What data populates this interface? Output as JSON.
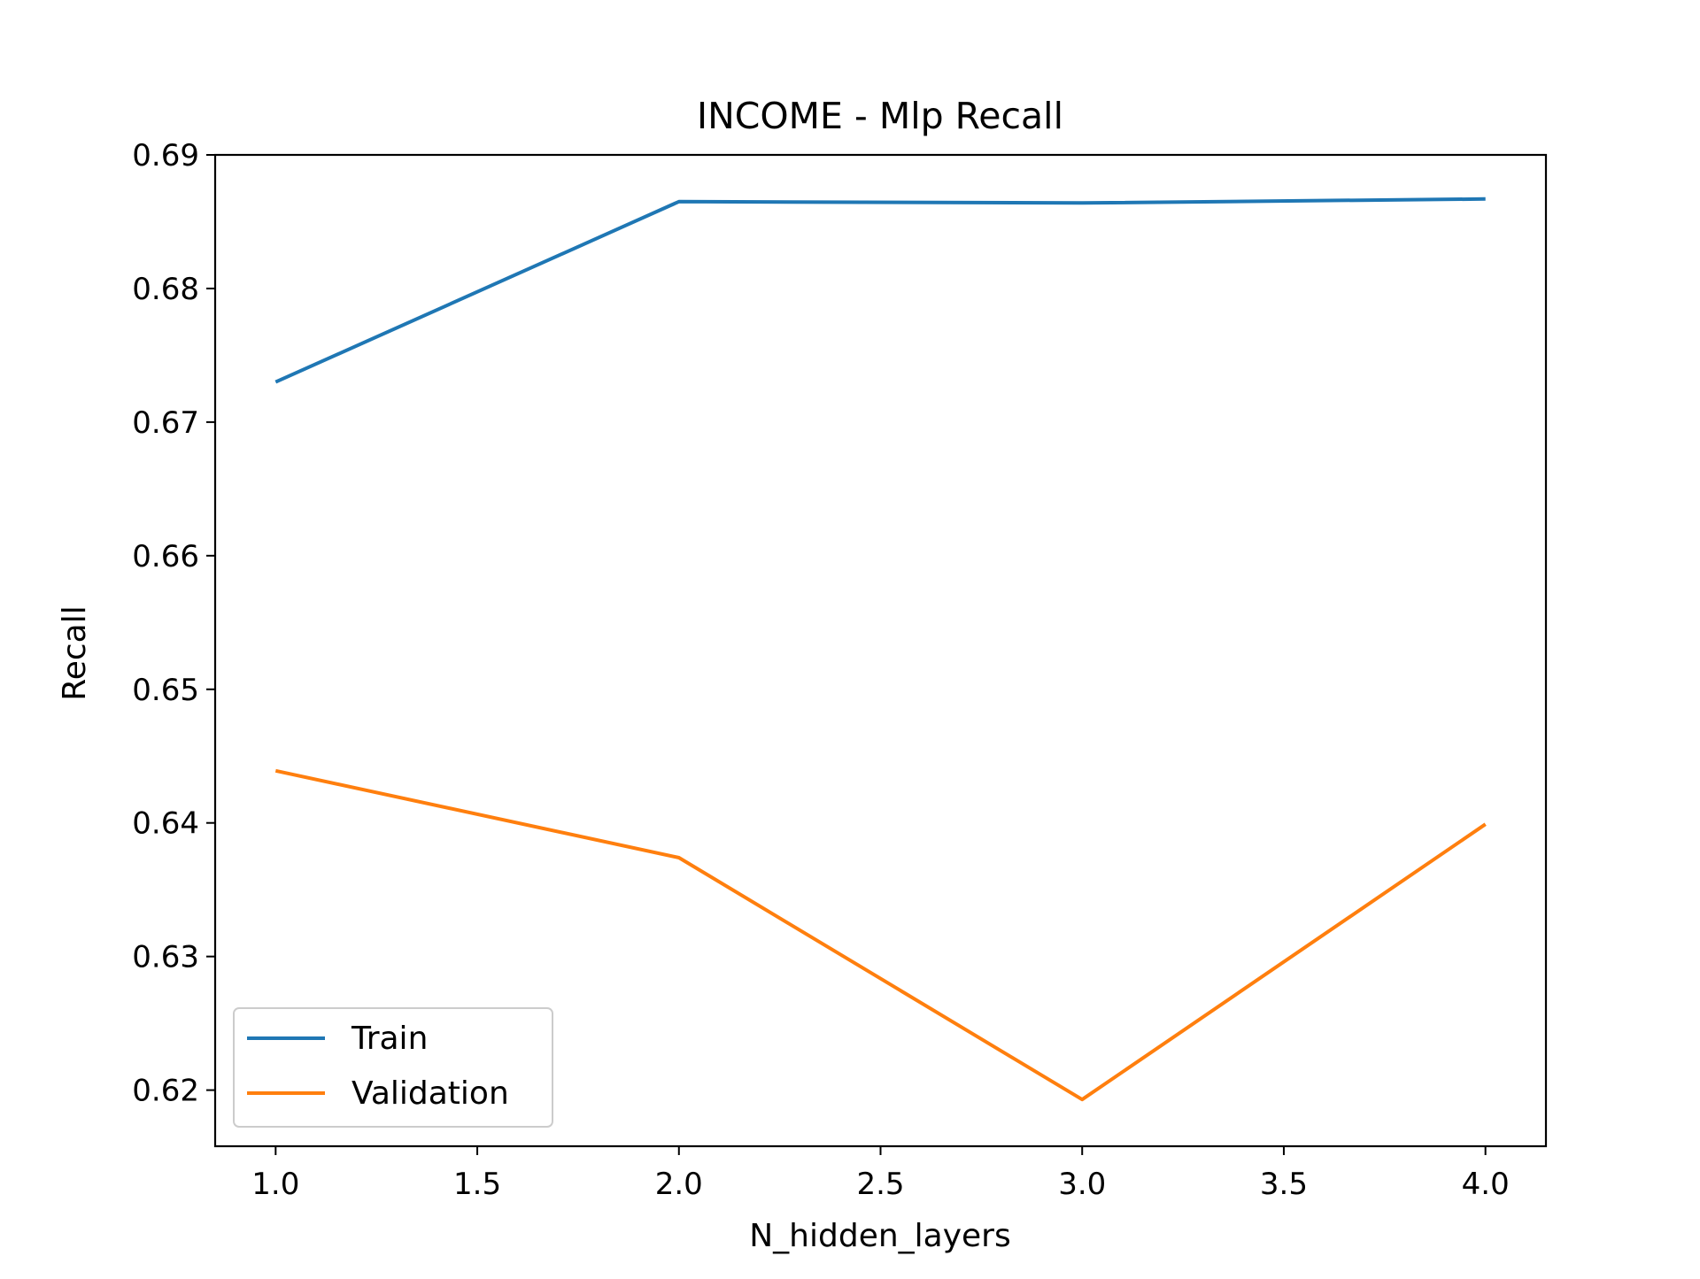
{
  "chart_data": {
    "type": "line",
    "title": "INCOME - Mlp Recall",
    "xlabel": "N_hidden_layers",
    "ylabel": "Recall",
    "xlim": [
      0.85,
      4.15
    ],
    "ylim": [
      0.6158,
      0.69
    ],
    "xticks": [
      1.0,
      1.5,
      2.0,
      2.5,
      3.0,
      3.5,
      4.0
    ],
    "xtick_labels": [
      "1.0",
      "1.5",
      "2.0",
      "2.5",
      "3.0",
      "3.5",
      "4.0"
    ],
    "yticks": [
      0.62,
      0.63,
      0.64,
      0.65,
      0.66,
      0.67,
      0.68,
      0.69
    ],
    "ytick_labels": [
      "0.62",
      "0.63",
      "0.64",
      "0.65",
      "0.66",
      "0.67",
      "0.68",
      "0.69"
    ],
    "grid": false,
    "legend_position": "lower-left",
    "x": [
      1.0,
      2.0,
      3.0,
      4.0
    ],
    "series": [
      {
        "name": "Train",
        "color": "#1f77b4",
        "values": [
          0.673,
          0.6865,
          0.6864,
          0.6867
        ]
      },
      {
        "name": "Validation",
        "color": "#ff7f0e",
        "values": [
          0.6439,
          0.6374,
          0.6193,
          0.6399
        ]
      }
    ]
  }
}
